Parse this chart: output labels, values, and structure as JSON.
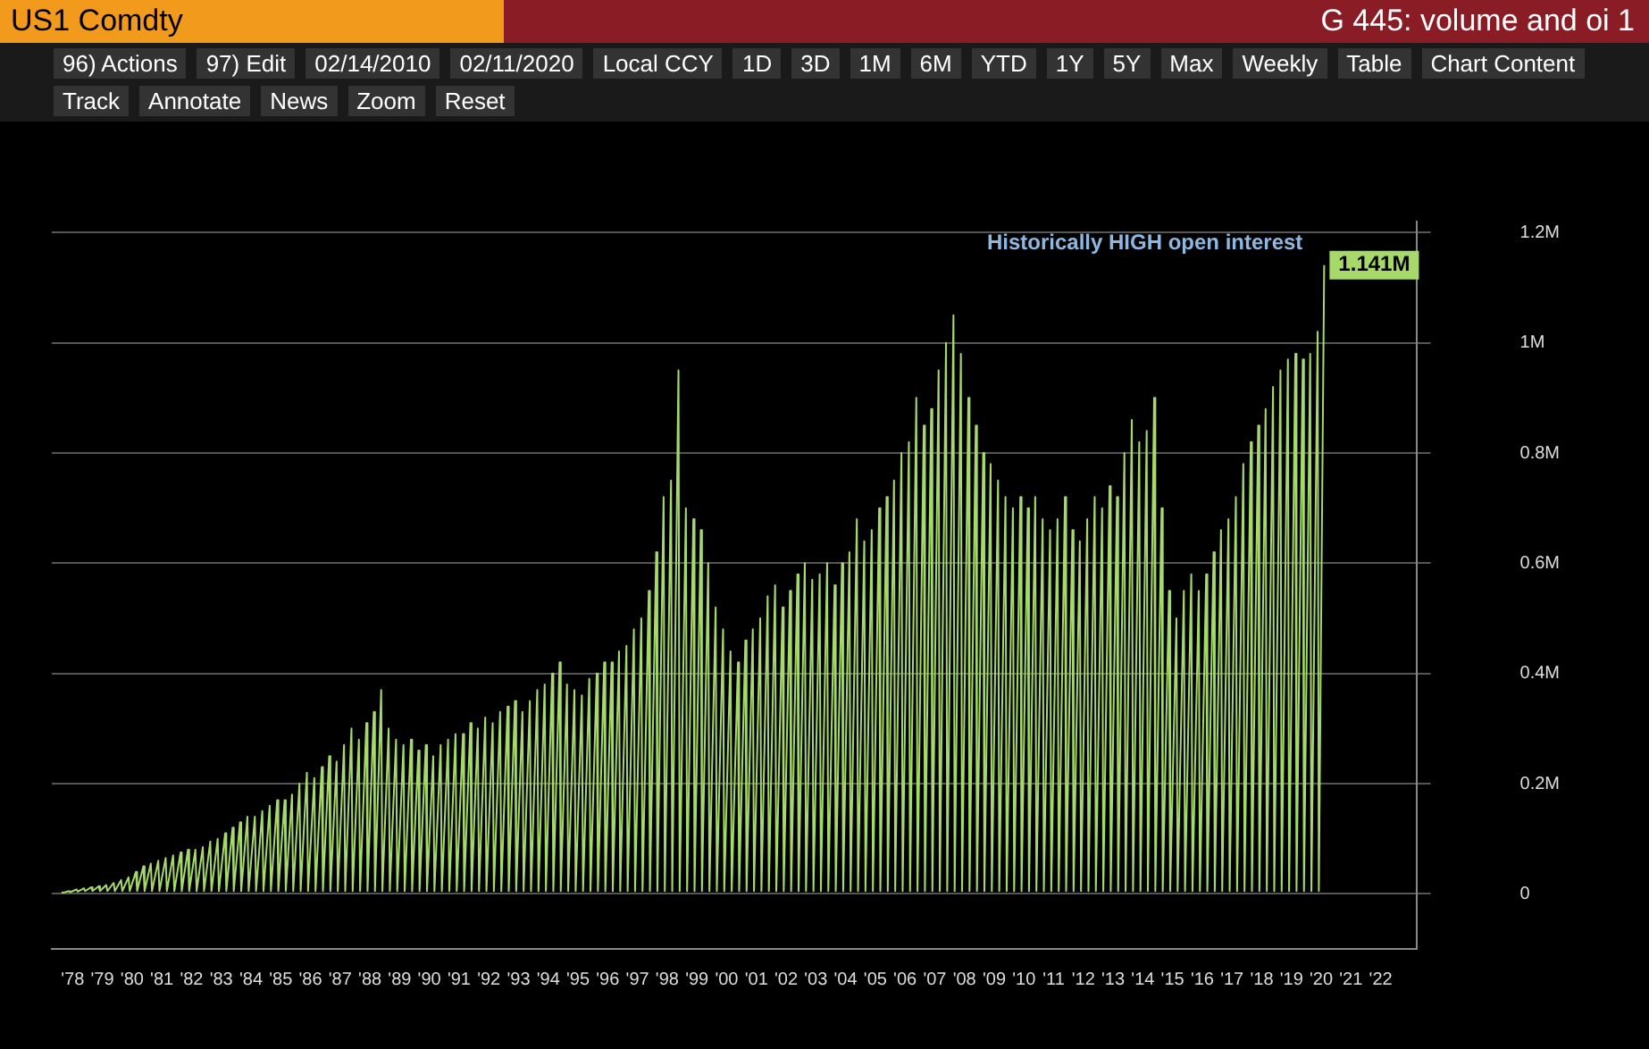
{
  "chart_data": {
    "type": "line",
    "title": "G 445: volume and oi 1",
    "subtitle": "US1 Comdty",
    "annotations": [
      {
        "text": "Historically HIGH open interest",
        "x": 2020.1,
        "y": 1.141
      },
      {
        "text": "1.141M",
        "x": 2020.1,
        "y": 1.141
      },
      "96) Actions",
      "97) Edit",
      "02/14/2010",
      "02/11/2020",
      "Local CCY",
      "1D",
      "3D",
      "1M",
      "6M",
      "YTD",
      "1Y",
      "5Y",
      "Max",
      "Weekly",
      "Table",
      "Chart Content",
      "Track",
      "Annotate",
      "News",
      "Zoom",
      "Reset"
    ],
    "xlim": [
      1977.3,
      2023.2
    ],
    "xticks": [
      {
        "value": 1978,
        "label": "'78"
      },
      {
        "value": 1979,
        "label": "'79"
      },
      {
        "value": 1980,
        "label": "'80"
      },
      {
        "value": 1981,
        "label": "'81"
      },
      {
        "value": 1982,
        "label": "'82"
      },
      {
        "value": 1983,
        "label": "'83"
      },
      {
        "value": 1984,
        "label": "'84"
      },
      {
        "value": 1985,
        "label": "'85"
      },
      {
        "value": 1986,
        "label": "'86"
      },
      {
        "value": 1987,
        "label": "'87"
      },
      {
        "value": 1988,
        "label": "'88"
      },
      {
        "value": 1989,
        "label": "'89"
      },
      {
        "value": 1990,
        "label": "'90"
      },
      {
        "value": 1991,
        "label": "'91"
      },
      {
        "value": 1992,
        "label": "'92"
      },
      {
        "value": 1993,
        "label": "'93"
      },
      {
        "value": 1994,
        "label": "'94"
      },
      {
        "value": 1995,
        "label": "'95"
      },
      {
        "value": 1996,
        "label": "'96"
      },
      {
        "value": 1997,
        "label": "'97"
      },
      {
        "value": 1998,
        "label": "'98"
      },
      {
        "value": 1999,
        "label": "'99"
      },
      {
        "value": 2000,
        "label": "'00"
      },
      {
        "value": 2001,
        "label": "'01"
      },
      {
        "value": 2002,
        "label": "'02"
      },
      {
        "value": 2003,
        "label": "'03"
      },
      {
        "value": 2004,
        "label": "'04"
      },
      {
        "value": 2005,
        "label": "'05"
      },
      {
        "value": 2006,
        "label": "'06"
      },
      {
        "value": 2007,
        "label": "'07"
      },
      {
        "value": 2008,
        "label": "'08"
      },
      {
        "value": 2009,
        "label": "'09"
      },
      {
        "value": 2010,
        "label": "'10"
      },
      {
        "value": 2011,
        "label": "'11"
      },
      {
        "value": 2012,
        "label": "'12"
      },
      {
        "value": 2013,
        "label": "'13"
      },
      {
        "value": 2014,
        "label": "'14"
      },
      {
        "value": 2015,
        "label": "'15"
      },
      {
        "value": 2016,
        "label": "'16"
      },
      {
        "value": 2017,
        "label": "'17"
      },
      {
        "value": 2018,
        "label": "'18"
      },
      {
        "value": 2019,
        "label": "'19"
      },
      {
        "value": 2020,
        "label": "'20"
      },
      {
        "value": 2021,
        "label": "'21"
      },
      {
        "value": 2022,
        "label": "'22"
      }
    ],
    "ylim": [
      -0.1,
      1.22
    ],
    "yticks": [
      0,
      {
        "value": 0.2,
        "label": "0.2M"
      },
      {
        "value": 0.4,
        "label": "0.4M"
      },
      {
        "value": 0.6,
        "label": "0.6M"
      },
      {
        "value": 0.8,
        "label": "0.8M"
      },
      {
        "value": 1,
        "label": "1M"
      },
      {
        "value": 1.2,
        "label": "1.2M"
      }
    ],
    "grid": "y",
    "legend": false,
    "marker": "none",
    "line_style": "solid",
    "series": [
      {
        "color": "#a6d96a",
        "x": [
          1977.63,
          1977.67,
          1977.88,
          1977.92,
          1978.13,
          1978.17,
          1978.38,
          1978.42,
          1978.63,
          1978.67,
          1978.88,
          1978.92,
          1979.13,
          1979.17,
          1979.38,
          1979.42,
          1979.63,
          1979.67,
          1979.88,
          1979.92,
          1980.13,
          1980.17,
          1980.38,
          1980.42,
          1980.63,
          1980.67,
          1980.88,
          1980.92,
          1981.13,
          1981.17,
          1981.38,
          1981.42,
          1981.63,
          1981.67,
          1981.88,
          1981.92,
          1982.13,
          1982.17,
          1982.38,
          1982.42,
          1982.63,
          1982.67,
          1982.88,
          1982.92,
          1983.13,
          1983.17,
          1983.38,
          1983.42,
          1983.63,
          1983.67,
          1983.88,
          1983.92,
          1984.13,
          1984.17,
          1984.38,
          1984.42,
          1984.63,
          1984.67,
          1984.88,
          1984.92,
          1985.13,
          1985.17,
          1985.38,
          1985.42,
          1985.63,
          1985.67,
          1985.88,
          1985.92,
          1986.13,
          1986.17,
          1986.38,
          1986.42,
          1986.63,
          1986.67,
          1986.88,
          1986.92,
          1987.13,
          1987.17,
          1987.38,
          1987.42,
          1987.63,
          1987.67,
          1987.88,
          1987.92,
          1988.13,
          1988.17,
          1988.38,
          1988.42,
          1988.63,
          1988.67,
          1988.88,
          1988.92,
          1989.13,
          1989.17,
          1989.38,
          1989.42,
          1989.63,
          1989.67,
          1989.88,
          1989.92,
          1990.13,
          1990.17,
          1990.38,
          1990.42,
          1990.63,
          1990.67,
          1990.88,
          1990.92,
          1991.13,
          1991.17,
          1991.38,
          1991.42,
          1991.63,
          1991.67,
          1991.88,
          1991.92,
          1992.13,
          1992.17,
          1992.38,
          1992.42,
          1992.63,
          1992.67,
          1992.88,
          1992.92,
          1993.13,
          1993.17,
          1993.38,
          1993.42,
          1993.63,
          1993.67,
          1993.88,
          1993.92,
          1994.13,
          1994.17,
          1994.38,
          1994.42,
          1994.63,
          1994.67,
          1994.88,
          1994.92,
          1995.13,
          1995.17,
          1995.38,
          1995.42,
          1995.63,
          1995.67,
          1995.88,
          1995.92,
          1996.13,
          1996.17,
          1996.38,
          1996.42,
          1996.63,
          1996.67,
          1996.88,
          1996.92,
          1997.13,
          1997.17,
          1997.38,
          1997.42,
          1997.63,
          1997.67,
          1997.88,
          1997.92,
          1998.13,
          1998.17,
          1998.38,
          1998.42,
          1998.63,
          1998.67,
          1998.88,
          1998.92,
          1999.13,
          1999.17,
          1999.38,
          1999.42,
          1999.63,
          1999.67,
          1999.88,
          1999.92,
          2000.13,
          2000.17,
          2000.38,
          2000.42,
          2000.63,
          2000.67,
          2000.88,
          2000.92,
          2001.13,
          2001.17,
          2001.38,
          2001.42,
          2001.63,
          2001.67,
          2001.88,
          2001.92,
          2002.13,
          2002.17,
          2002.38,
          2002.42,
          2002.63,
          2002.67,
          2002.88,
          2002.92,
          2003.13,
          2003.17,
          2003.38,
          2003.42,
          2003.63,
          2003.67,
          2003.88,
          2003.92,
          2004.13,
          2004.17,
          2004.38,
          2004.42,
          2004.63,
          2004.67,
          2004.88,
          2004.92,
          2005.13,
          2005.17,
          2005.38,
          2005.42,
          2005.63,
          2005.67,
          2005.88,
          2005.92,
          2006.13,
          2006.17,
          2006.38,
          2006.42,
          2006.63,
          2006.67,
          2006.88,
          2006.92,
          2007.13,
          2007.17,
          2007.38,
          2007.42,
          2007.63,
          2007.67,
          2007.88,
          2007.92,
          2008.13,
          2008.17,
          2008.38,
          2008.42,
          2008.63,
          2008.67,
          2008.88,
          2008.92,
          2009.13,
          2009.17,
          2009.38,
          2009.42,
          2009.63,
          2009.67,
          2009.88,
          2009.92,
          2010.13,
          2010.17,
          2010.38,
          2010.42,
          2010.63,
          2010.67,
          2010.88,
          2010.92,
          2011.13,
          2011.17,
          2011.38,
          2011.42,
          2011.63,
          2011.67,
          2011.88,
          2011.92,
          2012.13,
          2012.17,
          2012.38,
          2012.42,
          2012.63,
          2012.67,
          2012.88,
          2012.92,
          2013.13,
          2013.17,
          2013.38,
          2013.42,
          2013.63,
          2013.67,
          2013.88,
          2013.92,
          2014.13,
          2014.17,
          2014.38,
          2014.42,
          2014.63,
          2014.67,
          2014.88,
          2014.92,
          2015.13,
          2015.17,
          2015.38,
          2015.42,
          2015.63,
          2015.67,
          2015.88,
          2015.92,
          2016.13,
          2016.17,
          2016.38,
          2016.42,
          2016.63,
          2016.67,
          2016.88,
          2016.92,
          2017.13,
          2017.17,
          2017.38,
          2017.42,
          2017.63,
          2017.67,
          2017.88,
          2017.92,
          2018.13,
          2018.17,
          2018.38,
          2018.42,
          2018.63,
          2018.67,
          2018.88,
          2018.92,
          2019.13,
          2019.17,
          2019.38,
          2019.42,
          2019.63,
          2019.67,
          2019.88,
          2019.92,
          2020.1
        ],
        "values": [
          0.003,
          0.002,
          0.005,
          0.003,
          0.008,
          0.004,
          0.01,
          0.005,
          0.012,
          0.005,
          0.014,
          0.005,
          0.016,
          0.005,
          0.02,
          0.005,
          0.025,
          0.005,
          0.03,
          0.005,
          0.04,
          0.005,
          0.05,
          0.005,
          0.055,
          0.005,
          0.06,
          0.005,
          0.065,
          0.005,
          0.07,
          0.005,
          0.075,
          0.005,
          0.08,
          0.005,
          0.08,
          0.005,
          0.085,
          0.005,
          0.095,
          0.005,
          0.1,
          0.005,
          0.11,
          0.005,
          0.12,
          0.005,
          0.13,
          0.005,
          0.14,
          0.005,
          0.14,
          0.005,
          0.15,
          0.005,
          0.16,
          0.005,
          0.17,
          0.005,
          0.17,
          0.005,
          0.18,
          0.005,
          0.2,
          0.005,
          0.22,
          0.005,
          0.21,
          0.005,
          0.23,
          0.005,
          0.25,
          0.005,
          0.24,
          0.005,
          0.27,
          0.005,
          0.3,
          0.005,
          0.28,
          0.005,
          0.31,
          0.005,
          0.33,
          0.005,
          0.37,
          0.005,
          0.3,
          0.005,
          0.28,
          0.005,
          0.27,
          0.005,
          0.28,
          0.005,
          0.26,
          0.005,
          0.27,
          0.005,
          0.25,
          0.005,
          0.27,
          0.005,
          0.28,
          0.005,
          0.29,
          0.005,
          0.29,
          0.005,
          0.31,
          0.005,
          0.3,
          0.005,
          0.32,
          0.005,
          0.31,
          0.005,
          0.33,
          0.005,
          0.34,
          0.005,
          0.35,
          0.005,
          0.33,
          0.005,
          0.35,
          0.005,
          0.37,
          0.005,
          0.38,
          0.005,
          0.4,
          0.005,
          0.42,
          0.005,
          0.38,
          0.005,
          0.37,
          0.005,
          0.36,
          0.005,
          0.39,
          0.005,
          0.4,
          0.005,
          0.42,
          0.005,
          0.42,
          0.005,
          0.44,
          0.005,
          0.45,
          0.005,
          0.48,
          0.005,
          0.5,
          0.005,
          0.55,
          0.005,
          0.62,
          0.005,
          0.72,
          0.005,
          0.75,
          0.005,
          0.95,
          0.005,
          0.7,
          0.005,
          0.68,
          0.005,
          0.66,
          0.005,
          0.6,
          0.005,
          0.52,
          0.005,
          0.48,
          0.005,
          0.44,
          0.005,
          0.42,
          0.005,
          0.46,
          0.005,
          0.48,
          0.005,
          0.5,
          0.005,
          0.54,
          0.005,
          0.56,
          0.005,
          0.52,
          0.005,
          0.55,
          0.005,
          0.58,
          0.005,
          0.6,
          0.005,
          0.57,
          0.005,
          0.58,
          0.005,
          0.6,
          0.005,
          0.56,
          0.005,
          0.6,
          0.005,
          0.62,
          0.005,
          0.68,
          0.005,
          0.64,
          0.005,
          0.66,
          0.005,
          0.7,
          0.005,
          0.72,
          0.005,
          0.75,
          0.005,
          0.8,
          0.005,
          0.82,
          0.005,
          0.9,
          0.005,
          0.85,
          0.005,
          0.88,
          0.005,
          0.95,
          0.005,
          1.0,
          0.005,
          1.05,
          0.005,
          0.98,
          0.005,
          0.9,
          0.005,
          0.85,
          0.005,
          0.8,
          0.005,
          0.78,
          0.005,
          0.75,
          0.005,
          0.72,
          0.005,
          0.7,
          0.005,
          0.72,
          0.005,
          0.7,
          0.005,
          0.72,
          0.005,
          0.68,
          0.005,
          0.66,
          0.005,
          0.68,
          0.005,
          0.72,
          0.005,
          0.66,
          0.005,
          0.64,
          0.005,
          0.68,
          0.005,
          0.72,
          0.005,
          0.7,
          0.005,
          0.74,
          0.005,
          0.72,
          0.005,
          0.8,
          0.005,
          0.86,
          0.005,
          0.82,
          0.005,
          0.84,
          0.005,
          0.9,
          0.005,
          0.7,
          0.005,
          0.55,
          0.005,
          0.5,
          0.005,
          0.55,
          0.005,
          0.58,
          0.005,
          0.55,
          0.005,
          0.58,
          0.005,
          0.62,
          0.005,
          0.66,
          0.005,
          0.68,
          0.005,
          0.72,
          0.005,
          0.78,
          0.005,
          0.82,
          0.005,
          0.85,
          0.005,
          0.88,
          0.005,
          0.92,
          0.005,
          0.95,
          0.005,
          0.97,
          0.005,
          0.98,
          0.005,
          0.97,
          0.005,
          0.98,
          0.005,
          1.02,
          0.005,
          1.141
        ]
      }
    ]
  }
}
